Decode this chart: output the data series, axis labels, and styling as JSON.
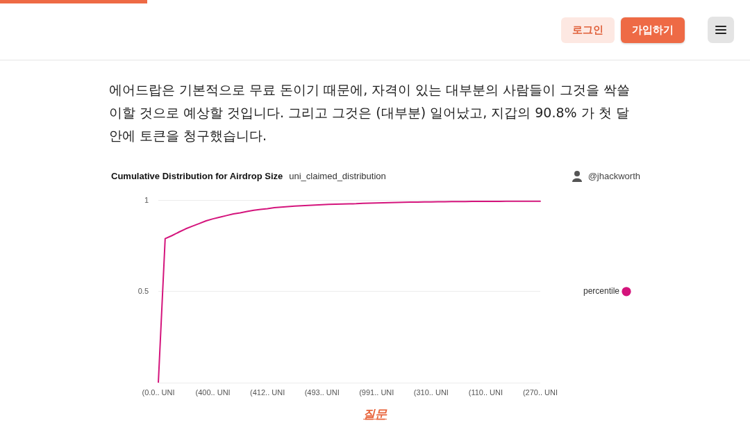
{
  "chart_data": {
    "type": "line",
    "title": "Cumulative Distribution for Airdrop Size",
    "subtitle": "uni_claimed_distribution",
    "annotations": [
      "로그인",
      "가입하기",
      "에어드랍은 기본적으로 무료 돈이기 때문에, 자격이 있는 대부분의 사람들이 그것을 싹쓸이할 것으로 예상할 것입니다. 그리고 그것은 (대부분) 일어났고, 지갑의 90.8% 가 첫 달 안에 토큰을 청구했습니다.",
      "@jhackworth",
      "질문"
    ],
    "categories": [
      "(0.0.. UNI",
      null,
      null,
      null,
      null,
      null,
      null,
      null,
      "(400.. UNI",
      null,
      null,
      null,
      null,
      null,
      null,
      null,
      "(412.. UNI",
      null,
      null,
      null,
      null,
      null,
      null,
      null,
      "(493.. UNI",
      null,
      null,
      null,
      null,
      null,
      null,
      null,
      "(991.. UNI",
      null,
      null,
      null,
      null,
      null,
      null,
      null,
      "(310.. UNI",
      null,
      null,
      null,
      null,
      null,
      null,
      null,
      "(110.. UNI",
      null,
      null,
      null,
      null,
      null,
      null,
      null,
      "(270.. UNI"
    ],
    "series": [
      {
        "name": "percentile",
        "color": "#d4147c",
        "values": [
          0,
          0.79,
          0.807,
          0.826,
          0.844,
          0.859,
          0.873,
          0.888,
          0.899,
          0.908,
          0.917,
          0.926,
          0.932,
          0.939,
          0.946,
          0.951,
          0.955,
          0.96,
          0.963,
          0.966,
          0.969,
          0.971,
          0.973,
          0.975,
          0.977,
          0.978,
          0.979,
          0.98,
          0.981,
          0.982,
          0.984,
          0.985,
          0.986,
          0.987,
          0.988,
          0.989,
          0.99,
          0.991,
          0.991,
          0.992,
          0.992,
          0.993,
          0.993,
          0.994,
          0.994,
          0.994,
          0.995,
          0.995,
          0.995,
          0.995,
          0.995,
          0.996,
          0.996,
          0.996,
          0.996,
          0.996,
          0.996
        ]
      }
    ],
    "ylim": [
      0,
      1
    ],
    "yticks": [
      {
        "value": 0,
        "label": null
      },
      0.5,
      1
    ],
    "grid": "y",
    "legend": "right",
    "marker": "none"
  }
}
